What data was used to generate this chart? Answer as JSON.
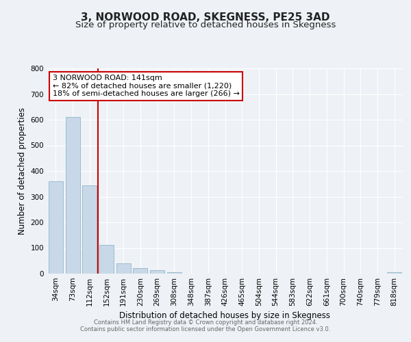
{
  "title": "3, NORWOOD ROAD, SKEGNESS, PE25 3AD",
  "subtitle": "Size of property relative to detached houses in Skegness",
  "xlabel": "Distribution of detached houses by size in Skegness",
  "ylabel": "Number of detached properties",
  "bin_labels": [
    "34sqm",
    "73sqm",
    "112sqm",
    "152sqm",
    "191sqm",
    "230sqm",
    "269sqm",
    "308sqm",
    "348sqm",
    "387sqm",
    "426sqm",
    "465sqm",
    "504sqm",
    "544sqm",
    "583sqm",
    "622sqm",
    "661sqm",
    "700sqm",
    "740sqm",
    "779sqm",
    "818sqm"
  ],
  "bar_values": [
    360,
    610,
    345,
    113,
    40,
    22,
    13,
    5,
    0,
    0,
    0,
    0,
    0,
    0,
    0,
    0,
    0,
    0,
    0,
    0,
    5
  ],
  "bar_color": "#c8d8e8",
  "bar_edge_color": "#9bbcd0",
  "property_line_color": "#cc0000",
  "annotation_line1": "3 NORWOOD ROAD: 141sqm",
  "annotation_line2": "← 82% of detached houses are smaller (1,220)",
  "annotation_line3": "18% of semi-detached houses are larger (266) →",
  "annotation_box_color": "#ffffff",
  "annotation_box_edge_color": "#cc0000",
  "ylim": [
    0,
    800
  ],
  "yticks": [
    0,
    100,
    200,
    300,
    400,
    500,
    600,
    700,
    800
  ],
  "background_color": "#eef2f6",
  "plot_bg_color": "#eef2f6",
  "grid_color": "#ffffff",
  "footer_line1": "Contains HM Land Registry data © Crown copyright and database right 2024.",
  "footer_line2": "Contains public sector information licensed under the Open Government Licence v3.0.",
  "title_fontsize": 11,
  "subtitle_fontsize": 9.5,
  "xlabel_fontsize": 8.5,
  "ylabel_fontsize": 8.5,
  "tick_fontsize": 7.5,
  "annotation_fontsize": 8,
  "footer_fontsize": 6
}
